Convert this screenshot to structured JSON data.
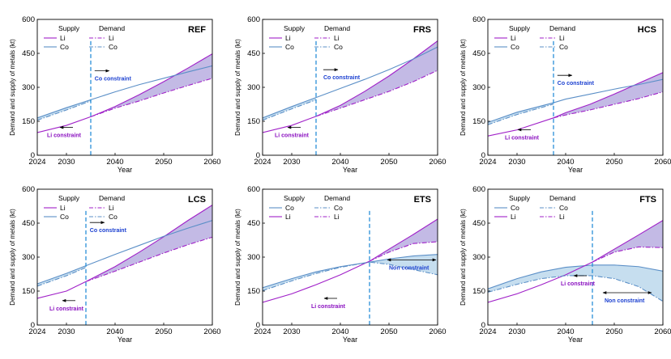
{
  "colors": {
    "li": "#a020c8",
    "co": "#5b8fc7",
    "li_fill": "#b8aee0",
    "co_fill": "#bcd8ec",
    "constraint_line": "#2a8fd8",
    "co_label": "#1a3fd0",
    "li_label": "#8a10c0"
  },
  "legend": {
    "supply": "Supply",
    "demand": "Demand",
    "li": "Li",
    "co": "Co"
  },
  "chart_data": [
    {
      "type": "line",
      "title": "REF",
      "xlabel": "Year",
      "ylabel": "Demand and supply of metals (kt)",
      "xlim": [
        2024,
        2060
      ],
      "ylim": [
        0,
        600
      ],
      "xticks": [
        2024,
        2030,
        2040,
        2050,
        2060
      ],
      "yticks": [
        0,
        150,
        300,
        450,
        600
      ],
      "legend_order": [
        "Li",
        "Co"
      ],
      "constraint_year": 2035,
      "annotations": [
        {
          "text": "Co constraint",
          "kind": "co",
          "x": 2035.8,
          "y": 330,
          "arrow": "right"
        },
        {
          "text": "Li constraint",
          "kind": "li",
          "x": 2026,
          "y": 80,
          "arrow": "left"
        }
      ],
      "series": [
        {
          "name": "Li",
          "metal": "li",
          "role": "Supply",
          "x": [
            2024,
            2030,
            2035,
            2040,
            2045,
            2050,
            2055,
            2060
          ],
          "values": [
            100,
            132,
            170,
            215,
            268,
            325,
            385,
            448
          ]
        },
        {
          "name": "Co",
          "metal": "co",
          "role": "Supply",
          "x": [
            2024,
            2030,
            2035,
            2040,
            2045,
            2050,
            2055,
            2060
          ],
          "values": [
            165,
            210,
            245,
            280,
            312,
            340,
            368,
            395
          ]
        },
        {
          "name": "Li",
          "metal": "li",
          "role": "Demand",
          "x": [
            2035,
            2040,
            2045,
            2050,
            2055,
            2060
          ],
          "values": [
            170,
            208,
            240,
            275,
            308,
            340
          ]
        },
        {
          "name": "Co",
          "metal": "co",
          "role": "Demand",
          "x": [
            2024,
            2030,
            2035
          ],
          "values": [
            155,
            200,
            240
          ]
        }
      ]
    },
    {
      "type": "line",
      "title": "FRS",
      "xlabel": "Year",
      "ylabel": "Demand and supply of metals (kt)",
      "xlim": [
        2024,
        2060
      ],
      "ylim": [
        0,
        600
      ],
      "xticks": [
        2024,
        2030,
        2040,
        2050,
        2060
      ],
      "yticks": [
        0,
        150,
        300,
        450,
        600
      ],
      "legend_order": [
        "Li",
        "Co"
      ],
      "constraint_year": 2035,
      "annotations": [
        {
          "text": "Co constraint",
          "kind": "co",
          "x": 2036.5,
          "y": 335,
          "arrow": "right"
        },
        {
          "text": "Li constraint",
          "kind": "li",
          "x": 2026.5,
          "y": 80,
          "arrow": "left"
        }
      ],
      "series": [
        {
          "name": "Li",
          "metal": "li",
          "role": "Supply",
          "x": [
            2024,
            2030,
            2035,
            2040,
            2045,
            2050,
            2055,
            2060
          ],
          "values": [
            100,
            132,
            172,
            220,
            282,
            350,
            425,
            505
          ]
        },
        {
          "name": "Co",
          "metal": "co",
          "role": "Supply",
          "x": [
            2024,
            2030,
            2035,
            2040,
            2045,
            2050,
            2055,
            2060
          ],
          "values": [
            165,
            215,
            255,
            295,
            335,
            378,
            425,
            478
          ]
        },
        {
          "name": "Li",
          "metal": "li",
          "role": "Demand",
          "x": [
            2035,
            2040,
            2045,
            2050,
            2055,
            2060
          ],
          "values": [
            172,
            208,
            245,
            282,
            325,
            375
          ]
        },
        {
          "name": "Co",
          "metal": "co",
          "role": "Demand",
          "x": [
            2024,
            2030,
            2035
          ],
          "values": [
            155,
            205,
            245
          ]
        }
      ]
    },
    {
      "type": "line",
      "title": "HCS",
      "xlabel": "Year",
      "ylabel": "Demand and supply of metals (kt)",
      "xlim": [
        2024,
        2060
      ],
      "ylim": [
        0,
        600
      ],
      "xticks": [
        2024,
        2030,
        2040,
        2050,
        2060
      ],
      "yticks": [
        0,
        150,
        300,
        450,
        600
      ],
      "legend_order": [
        "Li",
        "Co"
      ],
      "constraint_year": 2037.5,
      "annotations": [
        {
          "text": "Co constraint",
          "kind": "co",
          "x": 2038.3,
          "y": 310,
          "arrow": "right"
        },
        {
          "text": "Li constraint",
          "kind": "li",
          "x": 2027.5,
          "y": 70,
          "arrow": "left"
        }
      ],
      "series": [
        {
          "name": "Li",
          "metal": "li",
          "role": "Supply",
          "x": [
            2024,
            2030,
            2037.5,
            2040,
            2045,
            2050,
            2055,
            2060
          ],
          "values": [
            85,
            112,
            165,
            188,
            225,
            270,
            318,
            365
          ]
        },
        {
          "name": "Co",
          "metal": "co",
          "role": "Supply",
          "x": [
            2024,
            2030,
            2037.5,
            2040,
            2045,
            2050,
            2055,
            2060
          ],
          "values": [
            145,
            190,
            232,
            248,
            270,
            292,
            312,
            335
          ]
        },
        {
          "name": "Li",
          "metal": "li",
          "role": "Demand",
          "x": [
            2037.5,
            2040,
            2045,
            2050,
            2055,
            2060
          ],
          "values": [
            165,
            178,
            200,
            225,
            250,
            280
          ]
        },
        {
          "name": "Co",
          "metal": "co",
          "role": "Demand",
          "x": [
            2024,
            2030,
            2037.5
          ],
          "values": [
            135,
            180,
            226
          ]
        }
      ]
    },
    {
      "type": "line",
      "title": "LCS",
      "xlabel": "Year",
      "ylabel": "Demand and supply of metals (kt)",
      "xlim": [
        2024,
        2060
      ],
      "ylim": [
        0,
        600
      ],
      "xticks": [
        2024,
        2030,
        2040,
        2050,
        2060
      ],
      "yticks": [
        0,
        150,
        300,
        450,
        600
      ],
      "legend_order": [
        "Li",
        "Co"
      ],
      "constraint_year": 2034,
      "annotations": [
        {
          "text": "Co constraint",
          "kind": "co",
          "x": 2034.8,
          "y": 410,
          "arrow": "right"
        },
        {
          "text": "Li constraint",
          "kind": "li",
          "x": 2026.5,
          "y": 65,
          "arrow": "left"
        }
      ],
      "series": [
        {
          "name": "Li",
          "metal": "li",
          "role": "Supply",
          "x": [
            2024,
            2030,
            2034,
            2040,
            2045,
            2050,
            2055,
            2060
          ],
          "values": [
            118,
            150,
            192,
            258,
            322,
            390,
            462,
            530
          ]
        },
        {
          "name": "Co",
          "metal": "co",
          "role": "Supply",
          "x": [
            2024,
            2030,
            2034,
            2040,
            2045,
            2050,
            2055,
            2060
          ],
          "values": [
            182,
            228,
            262,
            312,
            352,
            392,
            428,
            462
          ]
        },
        {
          "name": "Li",
          "metal": "li",
          "role": "Demand",
          "x": [
            2034,
            2040,
            2045,
            2050,
            2055,
            2060
          ],
          "values": [
            192,
            238,
            278,
            318,
            355,
            388
          ]
        },
        {
          "name": "Co",
          "metal": "co",
          "role": "Demand",
          "x": [
            2024,
            2030,
            2034
          ],
          "values": [
            172,
            218,
            254
          ]
        }
      ]
    },
    {
      "type": "line",
      "title": "ETS",
      "xlabel": "Year",
      "ylabel": "Demand and supply of metals (kt)",
      "xlim": [
        2024,
        2060
      ],
      "ylim": [
        0,
        600
      ],
      "xticks": [
        2024,
        2030,
        2040,
        2050,
        2060
      ],
      "yticks": [
        0,
        150,
        300,
        450,
        600
      ],
      "legend_order": [
        "Co",
        "Li"
      ],
      "constraint_year": 2046,
      "annotations": [
        {
          "text": "Non constraint",
          "kind": "co",
          "x": 2050,
          "y": 245,
          "arrow": "both"
        },
        {
          "text": "Li constraint",
          "kind": "li",
          "x": 2034,
          "y": 75,
          "arrow": "left"
        }
      ],
      "series": [
        {
          "name": "Co",
          "metal": "co",
          "role": "Supply",
          "x": [
            2024,
            2030,
            2035,
            2040,
            2046,
            2050,
            2055,
            2060
          ],
          "values": [
            165,
            205,
            235,
            258,
            278,
            292,
            305,
            312
          ]
        },
        {
          "name": "Li",
          "metal": "li",
          "role": "Supply",
          "x": [
            2024,
            2030,
            2035,
            2040,
            2046,
            2050,
            2055,
            2060
          ],
          "values": [
            100,
            138,
            178,
            222,
            282,
            335,
            400,
            468
          ]
        },
        {
          "name": "Co",
          "metal": "co",
          "role": "Demand",
          "x": [
            2024,
            2030,
            2035,
            2040,
            2046,
            2050,
            2055,
            2060
          ],
          "values": [
            152,
            195,
            228,
            255,
            278,
            268,
            245,
            222
          ]
        },
        {
          "name": "Li",
          "metal": "li",
          "role": "Demand",
          "x": [
            2046,
            2050,
            2055,
            2060
          ],
          "values": [
            282,
            322,
            360,
            368
          ]
        }
      ]
    },
    {
      "type": "line",
      "title": "FTS",
      "xlabel": "Year",
      "ylabel": "Demand and supply of metals (kt)",
      "xlim": [
        2024,
        2060
      ],
      "ylim": [
        0,
        600
      ],
      "xticks": [
        2024,
        2030,
        2040,
        2050,
        2060
      ],
      "yticks": [
        0,
        150,
        300,
        450,
        600
      ],
      "legend_order": [
        "Co",
        "Li"
      ],
      "constraint_year": 2045.5,
      "annotations": [
        {
          "text": "Li constraint",
          "kind": "li",
          "x": 2039,
          "y": 175,
          "arrow": "left"
        },
        {
          "text": "Non constraint",
          "kind": "co",
          "x": 2048,
          "y": 100,
          "arrow": "both"
        }
      ],
      "series": [
        {
          "name": "Co",
          "metal": "co",
          "role": "Supply",
          "x": [
            2024,
            2030,
            2035,
            2040,
            2045.5,
            2050,
            2055,
            2060
          ],
          "values": [
            160,
            205,
            235,
            255,
            265,
            265,
            258,
            238
          ]
        },
        {
          "name": "Li",
          "metal": "li",
          "role": "Supply",
          "x": [
            2024,
            2030,
            2035,
            2040,
            2045.5,
            2050,
            2055,
            2060
          ],
          "values": [
            100,
            138,
            178,
            222,
            278,
            335,
            398,
            462
          ]
        },
        {
          "name": "Co",
          "metal": "co",
          "role": "Demand",
          "x": [
            2024,
            2030,
            2035,
            2040,
            2045.5,
            2050,
            2055,
            2060
          ],
          "values": [
            145,
            180,
            205,
            218,
            218,
            205,
            170,
            105
          ]
        },
        {
          "name": "Li",
          "metal": "li",
          "role": "Demand",
          "x": [
            2045.5,
            2050,
            2055,
            2060
          ],
          "values": [
            278,
            322,
            345,
            342
          ]
        }
      ]
    }
  ]
}
